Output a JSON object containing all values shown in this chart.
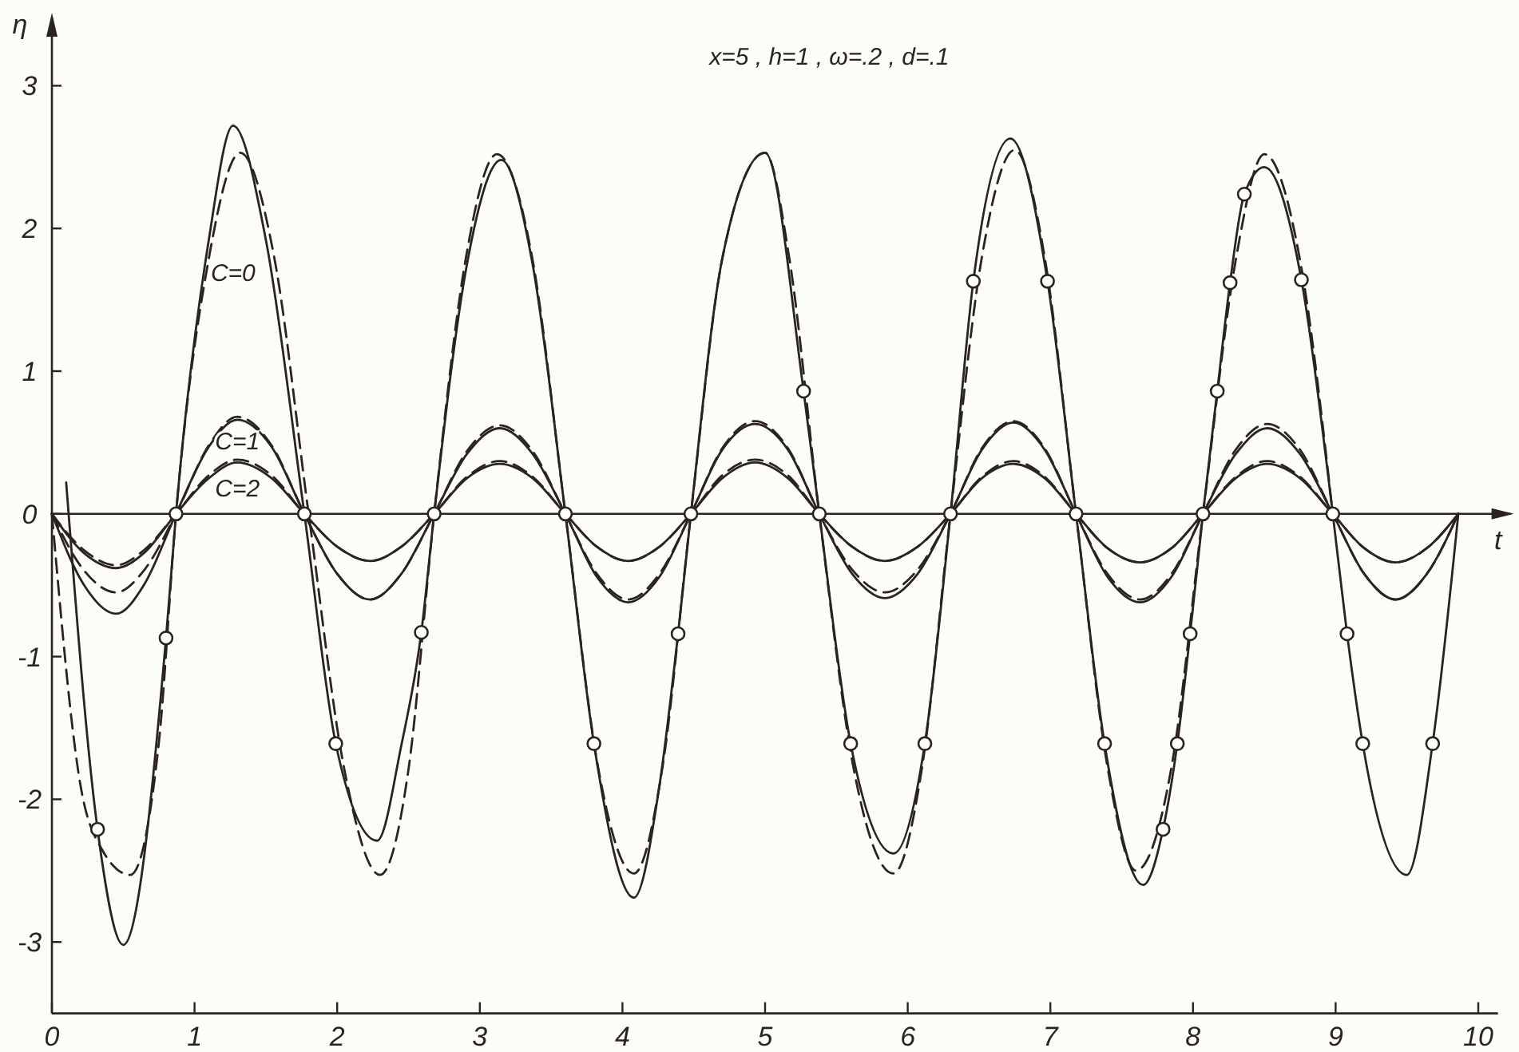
{
  "chart_data": {
    "type": "line",
    "title": "x=5 , h=1 , ω=.2 , d=.1",
    "xlabel": "t",
    "ylabel": "η",
    "xlim": [
      0,
      10.25
    ],
    "ylim": [
      -3.5,
      3.5
    ],
    "xticks": [
      0,
      1,
      2,
      3,
      4,
      5,
      6,
      7,
      8,
      9,
      10
    ],
    "yticks": [
      -3,
      -2,
      -1,
      0,
      1,
      2,
      3
    ],
    "ref_lines": [
      {
        "axis": "y",
        "value": 0
      }
    ],
    "x": [
      0,
      0.22,
      0.45,
      0.65,
      0.87,
      1.1,
      1.3,
      1.54,
      1.77,
      2.0,
      2.23,
      2.45,
      2.68,
      2.91,
      3.14,
      3.37,
      3.6,
      3.82,
      4.04,
      4.26,
      4.48,
      4.7,
      4.93,
      5.16,
      5.38,
      5.61,
      5.84,
      6.07,
      6.3,
      6.52,
      6.74,
      6.96,
      7.18,
      7.4,
      7.63,
      7.85,
      8.07,
      8.3,
      8.52,
      8.75,
      8.98,
      9.2,
      9.42,
      9.64,
      9.86
    ],
    "series": [
      {
        "name": "C=0",
        "color": "#2b2320",
        "line_style": "solid",
        "marker": "none",
        "x": [
          0.1,
          0.32,
          0.5,
          0.8,
          0.87,
          1.1,
          1.27,
          1.5,
          1.77,
          1.99,
          2.28,
          2.45,
          2.59,
          2.68,
          2.91,
          3.15,
          3.37,
          3.6,
          3.8,
          4.08,
          4.26,
          4.39,
          4.48,
          4.7,
          5.0,
          5.27,
          5.38,
          5.6,
          5.9,
          6.12,
          6.3,
          6.46,
          6.72,
          6.98,
          7.18,
          7.38,
          7.65,
          7.79,
          7.89,
          7.98,
          8.07,
          8.17,
          8.26,
          8.36,
          8.5,
          8.76,
          8.98,
          9.08,
          9.19,
          9.5,
          9.68,
          9.86
        ],
        "values": [
          0.22,
          -2.21,
          -3.02,
          -0.87,
          0,
          1.92,
          2.72,
          1.92,
          0,
          -1.61,
          -2.29,
          -1.62,
          -0.83,
          0,
          1.75,
          2.48,
          1.75,
          0,
          -1.61,
          -2.69,
          -1.9,
          -0.84,
          0,
          1.79,
          2.53,
          0.86,
          0,
          -1.61,
          -2.38,
          -1.61,
          0,
          1.63,
          2.63,
          1.63,
          0,
          -1.61,
          -2.6,
          -2.21,
          -1.61,
          -0.84,
          0,
          0.86,
          1.62,
          2.24,
          2.43,
          1.64,
          0,
          -0.84,
          -1.61,
          -2.53,
          -1.61,
          0
        ]
      },
      {
        "color": "#2b2320",
        "line_style": "dashed",
        "marker": "none",
        "x": [
          0,
          0.2,
          0.35,
          0.55,
          0.75,
          0.87,
          1.1,
          1.32,
          1.56,
          1.8,
          2.05,
          2.3,
          2.5,
          2.68,
          2.9,
          3.12,
          3.37,
          3.6,
          3.83,
          4.08,
          4.28,
          4.48,
          4.7,
          5.0,
          5.17,
          5.38,
          5.62,
          5.9,
          6.1,
          6.3,
          6.52,
          6.75,
          6.96,
          7.18,
          7.4,
          7.6,
          7.85,
          8.07,
          8.3,
          8.5,
          8.75,
          8.98
        ],
        "values": [
          0,
          -1.9,
          -2.35,
          -2.53,
          -1.6,
          0,
          1.79,
          2.53,
          1.79,
          0,
          -1.79,
          -2.53,
          -1.79,
          0,
          1.78,
          2.52,
          1.78,
          0,
          -1.78,
          -2.52,
          -1.78,
          0,
          1.79,
          2.53,
          1.79,
          0,
          -1.78,
          -2.52,
          -1.78,
          0,
          1.8,
          2.55,
          1.8,
          0,
          -1.77,
          -2.5,
          -1.77,
          0,
          1.78,
          2.52,
          1.78,
          0
        ]
      },
      {
        "name": "C=1",
        "color": "#2b2320",
        "line_style": "solid",
        "marker": "none",
        "values": [
          0,
          -0.49,
          -0.7,
          -0.49,
          0,
          0.47,
          0.66,
          0.47,
          0,
          -0.42,
          -0.6,
          -0.42,
          0,
          0.42,
          0.6,
          0.42,
          0,
          -0.44,
          -0.62,
          -0.44,
          0,
          0.45,
          0.63,
          0.45,
          0,
          -0.42,
          -0.59,
          -0.42,
          0,
          0.45,
          0.64,
          0.45,
          0,
          -0.44,
          -0.62,
          -0.44,
          0,
          0.42,
          0.6,
          0.42,
          0,
          -0.42,
          -0.6,
          -0.42,
          0
        ]
      },
      {
        "color": "#2b2320",
        "line_style": "dashed",
        "marker": "none",
        "values": [
          0,
          -0.39,
          -0.55,
          -0.39,
          0,
          0.48,
          0.68,
          0.48,
          0,
          -0.42,
          -0.6,
          -0.42,
          0,
          0.44,
          0.62,
          0.44,
          0,
          -0.42,
          -0.6,
          -0.42,
          0,
          0.46,
          0.65,
          0.46,
          0,
          -0.39,
          -0.55,
          -0.39,
          0,
          0.46,
          0.65,
          0.46,
          0,
          -0.42,
          -0.6,
          -0.42,
          0,
          0.45,
          0.63,
          0.45,
          0,
          -0.42,
          -0.6,
          -0.42,
          0
        ]
      },
      {
        "name": "C=2",
        "color": "#2b2320",
        "line_style": "solid",
        "marker": "none",
        "values": [
          0,
          -0.27,
          -0.38,
          -0.27,
          0,
          0.25,
          0.36,
          0.25,
          0,
          -0.23,
          -0.33,
          -0.23,
          0,
          0.25,
          0.35,
          0.25,
          0,
          -0.23,
          -0.33,
          -0.23,
          0,
          0.25,
          0.36,
          0.25,
          0,
          -0.23,
          -0.33,
          -0.23,
          0,
          0.25,
          0.35,
          0.25,
          0,
          -0.24,
          -0.34,
          -0.24,
          0,
          0.25,
          0.35,
          0.25,
          0,
          -0.24,
          -0.34,
          -0.24,
          0
        ]
      },
      {
        "color": "#2b2320",
        "line_style": "dashed",
        "marker": "none",
        "values": [
          0,
          -0.25,
          -0.36,
          -0.25,
          0,
          0.27,
          0.38,
          0.27,
          0,
          -0.23,
          -0.33,
          -0.23,
          0,
          0.26,
          0.37,
          0.26,
          0,
          -0.23,
          -0.33,
          -0.23,
          0,
          0.27,
          0.38,
          0.27,
          0,
          -0.23,
          -0.33,
          -0.23,
          0,
          0.26,
          0.37,
          0.26,
          0,
          -0.24,
          -0.34,
          -0.24,
          0,
          0.26,
          0.37,
          0.26,
          0,
          -0.24,
          -0.34,
          -0.24,
          0
        ]
      },
      {
        "type": "scatter",
        "color": "#2b2320",
        "marker": "circle",
        "x": [
          0.32,
          0.8,
          0.87,
          1.77,
          1.99,
          2.59,
          2.68,
          3.6,
          3.8,
          4.39,
          4.48,
          5.27,
          5.38,
          5.6,
          6.12,
          6.3,
          6.46,
          6.98,
          7.18,
          7.38,
          7.79,
          7.89,
          7.98,
          8.07,
          8.17,
          8.26,
          8.36,
          8.76,
          8.98,
          9.08,
          9.19,
          9.68
        ],
        "values": [
          -2.21,
          -0.87,
          0,
          0,
          -1.61,
          -0.83,
          0,
          0,
          -1.61,
          -0.84,
          0,
          0.86,
          0,
          -1.61,
          -1.61,
          0,
          1.63,
          1.63,
          0,
          -1.61,
          -2.21,
          -1.61,
          -0.84,
          0,
          0.86,
          1.62,
          2.24,
          1.64,
          0,
          -0.84,
          -1.61,
          -1.61
        ]
      }
    ]
  }
}
